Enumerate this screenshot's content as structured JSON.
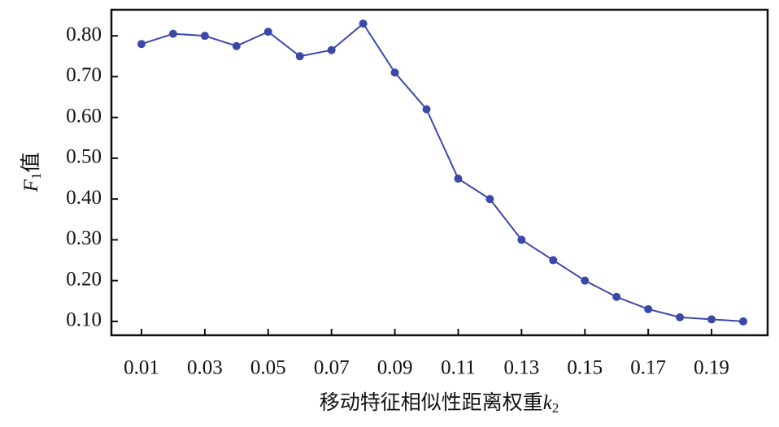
{
  "chart_data": {
    "type": "line",
    "xlabel": [
      "移动特征相似性距离权重",
      "k",
      "2"
    ],
    "ylabel": [
      "F",
      "1",
      "值"
    ],
    "x": [
      0.01,
      0.02,
      0.03,
      0.04,
      0.05,
      0.06,
      0.07,
      0.08,
      0.09,
      0.1,
      0.11,
      0.12,
      0.13,
      0.14,
      0.15,
      0.16,
      0.17,
      0.18,
      0.19,
      0.2
    ],
    "series": [
      {
        "color": "#3b48a8",
        "values": [
          0.78,
          0.805,
          0.8,
          0.775,
          0.81,
          0.75,
          0.765,
          0.83,
          0.71,
          0.62,
          0.45,
          0.4,
          0.3,
          0.25,
          0.2,
          0.16,
          0.13,
          0.11,
          0.105,
          0.1
        ]
      }
    ],
    "xlim": [
      0.0005,
      0.2077
    ],
    "ylim": [
      0.066,
      0.864
    ],
    "xticks": [
      0.01,
      0.03,
      0.05,
      0.07,
      0.09,
      0.11,
      0.13,
      0.15,
      0.17,
      0.19
    ],
    "yticks": [
      {
        "value": 0.1,
        "label": "0.10"
      },
      {
        "value": 0.2,
        "label": "0.20"
      },
      {
        "value": 0.3,
        "label": "0.30"
      },
      {
        "value": 0.4,
        "label": "0.40"
      },
      {
        "value": 0.5,
        "label": "0.50"
      },
      {
        "value": 0.6,
        "label": "0.60"
      },
      {
        "value": 0.7,
        "label": "0.70"
      },
      {
        "value": 0.8,
        "label": "0.80"
      }
    ]
  }
}
